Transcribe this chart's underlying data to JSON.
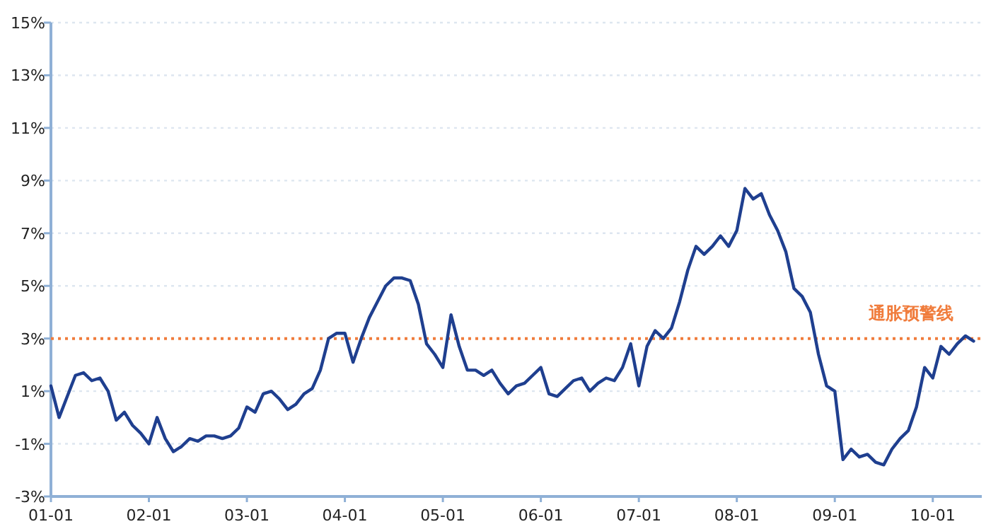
{
  "chart_data": {
    "type": "line",
    "categories": [
      "01-01",
      null,
      null,
      null,
      null,
      null,
      null,
      null,
      null,
      null,
      null,
      null,
      "02-01",
      null,
      null,
      null,
      null,
      null,
      null,
      null,
      null,
      null,
      null,
      null,
      "03-01",
      null,
      null,
      null,
      null,
      null,
      null,
      null,
      null,
      null,
      null,
      null,
      "04-01",
      null,
      null,
      null,
      null,
      null,
      null,
      null,
      null,
      null,
      null,
      null,
      "05-01",
      null,
      null,
      null,
      null,
      null,
      null,
      null,
      null,
      null,
      null,
      null,
      "06-01",
      null,
      null,
      null,
      null,
      null,
      null,
      null,
      null,
      null,
      null,
      null,
      "07-01",
      null,
      null,
      null,
      null,
      null,
      null,
      null,
      null,
      null,
      null,
      null,
      "08-01",
      null,
      null,
      null,
      null,
      null,
      null,
      null,
      null,
      null,
      null,
      null,
      "09-01",
      null,
      null,
      null,
      null,
      null,
      null,
      null,
      null,
      null,
      null,
      null,
      "10-01",
      null,
      null,
      null,
      null,
      null
    ],
    "series": [
      {
        "color": "#1f3f8f",
        "values": [
          1.2,
          0.0,
          0.8,
          1.6,
          1.7,
          1.4,
          1.5,
          1.0,
          -0.1,
          0.2,
          -0.3,
          -0.6,
          -1.0,
          0.0,
          -0.8,
          -1.3,
          -1.1,
          -0.8,
          -0.9,
          -0.7,
          -0.7,
          -0.8,
          -0.7,
          -0.4,
          0.4,
          0.2,
          0.9,
          1.0,
          0.7,
          0.3,
          0.5,
          0.9,
          1.1,
          1.8,
          3.0,
          3.2,
          3.2,
          2.1,
          3.0,
          3.8,
          4.4,
          5.0,
          5.3,
          5.3,
          5.2,
          4.3,
          2.8,
          2.4,
          1.9,
          3.9,
          2.7,
          1.8,
          1.8,
          1.6,
          1.8,
          1.3,
          0.9,
          1.2,
          1.3,
          1.6,
          1.9,
          0.9,
          0.8,
          1.1,
          1.4,
          1.5,
          1.0,
          1.3,
          1.5,
          1.4,
          1.9,
          2.8,
          1.2,
          2.7,
          3.3,
          3.0,
          3.4,
          4.4,
          5.6,
          6.5,
          6.2,
          6.5,
          6.9,
          6.5,
          7.1,
          8.7,
          8.3,
          8.5,
          7.7,
          7.1,
          6.3,
          4.9,
          4.6,
          4.0,
          2.4,
          1.2,
          1.0,
          -1.6,
          -1.2,
          -1.5,
          -1.4,
          -1.7,
          -1.8,
          -1.2,
          -0.8,
          -0.5,
          0.4,
          1.9,
          1.5,
          2.7,
          2.4,
          2.8,
          3.1,
          2.9
        ]
      }
    ],
    "ylim": [
      -3,
      15
    ],
    "yticks": [
      {
        "value": -3,
        "label": "-3%"
      },
      {
        "value": -1,
        "label": "-1%"
      },
      {
        "value": 1,
        "label": "1%"
      },
      {
        "value": 3,
        "label": "3%"
      },
      {
        "value": 5,
        "label": "5%"
      },
      {
        "value": 7,
        "label": "7%"
      },
      {
        "value": 9,
        "label": "9%"
      },
      {
        "value": 11,
        "label": "11%"
      },
      {
        "value": 13,
        "label": "13%"
      },
      {
        "value": 15,
        "label": "15%"
      }
    ],
    "grid": "y",
    "ref_lines": [
      {
        "axis": "y",
        "value": 3,
        "label": "通胀预警线",
        "color": "#f07c3c",
        "line_style": "dotted"
      }
    ]
  }
}
